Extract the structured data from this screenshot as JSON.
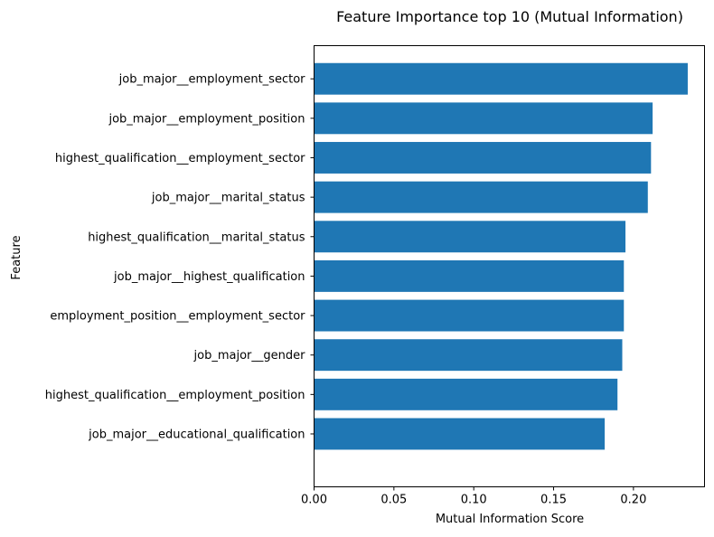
{
  "chart_data": {
    "type": "bar",
    "orientation": "horizontal",
    "title": "Feature Importance top 10 (Mutual Information)",
    "xlabel": "Mutual Information Score",
    "ylabel": "Feature",
    "categories": [
      "job_major__employment_sector",
      "job_major__employment_position",
      "highest_qualification__employment_sector",
      "job_major__marital_status",
      "highest_qualification__marital_status",
      "job_major__highest_qualification",
      "employment_position__employment_sector",
      "job_major__gender",
      "highest_qualification__employment_position",
      "job_major__educational_qualification"
    ],
    "values": [
      0.234,
      0.212,
      0.211,
      0.209,
      0.195,
      0.194,
      0.194,
      0.193,
      0.19,
      0.182
    ],
    "xlim": [
      0,
      0.2445
    ],
    "xticks": [
      0.0,
      0.05,
      0.1,
      0.15,
      0.2
    ],
    "xtick_labels": [
      "0.00",
      "0.05",
      "0.10",
      "0.15",
      "0.20"
    ],
    "bar_color": "#1f77b4",
    "grid": false,
    "legend": "none"
  }
}
